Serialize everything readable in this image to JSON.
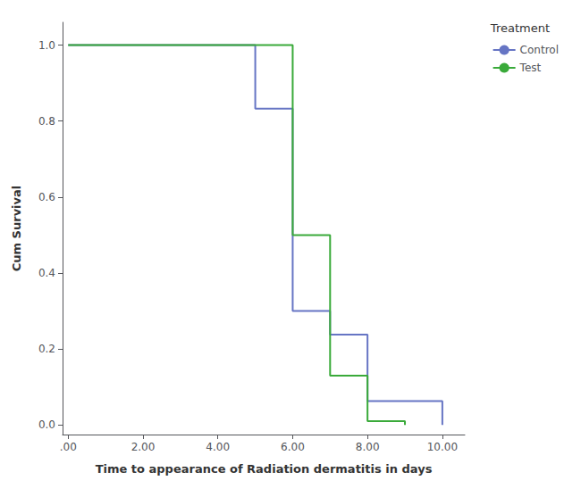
{
  "chart_data": {
    "type": "line",
    "xlabel": "Time to appearance of Radiation dermatitis in days",
    "ylabel": "Cum Survival",
    "legend_title": "Treatment",
    "series": [
      {
        "name": "Control",
        "color": "#6675c4",
        "x": [
          0.0,
          5.0,
          5.0,
          6.0,
          6.0,
          7.0,
          7.0,
          8.0,
          8.0,
          10.0,
          10.0
        ],
        "values": [
          1.0,
          1.0,
          0.833,
          0.833,
          0.3,
          0.3,
          0.238,
          0.238,
          0.063,
          0.063,
          0.0
        ]
      },
      {
        "name": "Test",
        "color": "#3aaa3a",
        "x": [
          0.0,
          6.0,
          6.0,
          7.0,
          7.0,
          8.0,
          8.0,
          9.0,
          9.0
        ],
        "values": [
          1.0,
          1.0,
          0.5,
          0.5,
          0.13,
          0.13,
          0.01,
          0.01,
          0.0
        ]
      }
    ],
    "xlim": [
      -0.15,
      10.6
    ],
    "ylim": [
      -0.025,
      1.06
    ],
    "xticks": [
      {
        "value": 0,
        "label": ".00"
      },
      {
        "value": 2,
        "label": "2.00"
      },
      {
        "value": 4,
        "label": "4.00"
      },
      {
        "value": 6,
        "label": "6.00"
      },
      {
        "value": 8,
        "label": "8.00"
      },
      {
        "value": 10,
        "label": "10.00"
      }
    ],
    "yticks": [
      {
        "value": 0,
        "label": "0.0"
      },
      0.2,
      0.4,
      0.6,
      0.8,
      {
        "value": 1,
        "label": "1.0"
      }
    ],
    "grid": false,
    "legend": "right"
  }
}
